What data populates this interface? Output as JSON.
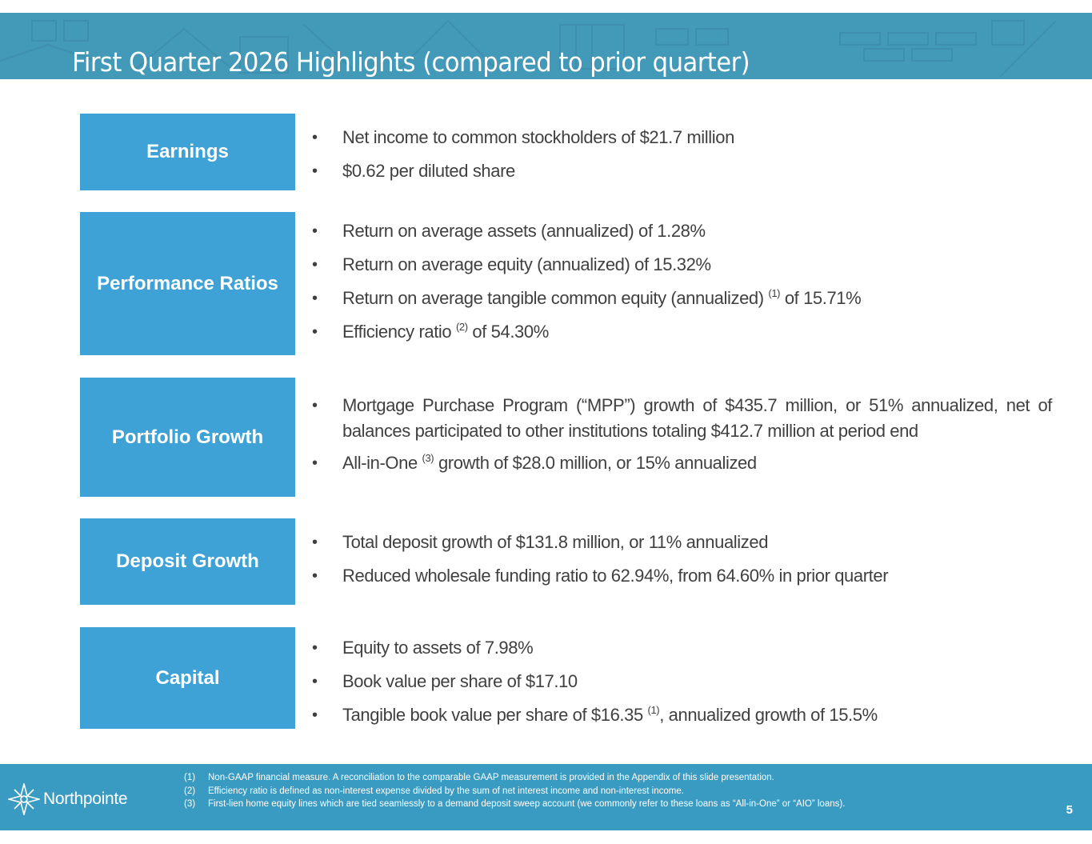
{
  "header": {
    "title": "First Quarter 2026 Highlights (compared to prior quarter)"
  },
  "colors": {
    "header_bg": "#4399b8",
    "section_box": "#3ea2d6",
    "footer_bg": "#3a9bc2",
    "body_text": "#404040"
  },
  "sections": [
    {
      "label": "Earnings",
      "bullets": [
        {
          "text": "Net income to common stockholders of $21.7 million",
          "sup": "",
          "after": ""
        },
        {
          "text": "$0.62 per diluted share",
          "sup": "",
          "after": ""
        }
      ]
    },
    {
      "label": "Performance Ratios",
      "bullets": [
        {
          "text": "Return on average assets (annualized) of 1.28%",
          "sup": "",
          "after": ""
        },
        {
          "text": "Return on average equity (annualized) of 15.32%",
          "sup": "",
          "after": ""
        },
        {
          "text": "Return on average tangible common equity (annualized) ",
          "sup": "(1)",
          "after": " of 15.71%"
        },
        {
          "text": "Efficiency ratio ",
          "sup": "(2)",
          "after": " of 54.30%"
        }
      ]
    },
    {
      "label": "Portfolio Growth",
      "bullets": [
        {
          "text": "Mortgage Purchase Program (“MPP”) growth of $435.7 million, or 51% annualized, net of balances participated to other institutions totaling $412.7 million at period end",
          "sup": "",
          "after": ""
        },
        {
          "text": "All-in-One ",
          "sup": "(3)",
          "after": " growth of $28.0 million, or 15% annualized"
        }
      ]
    },
    {
      "label": "Deposit Growth",
      "bullets": [
        {
          "text": "Total deposit growth of $131.8 million, or 11% annualized",
          "sup": "",
          "after": ""
        },
        {
          "text": "Reduced wholesale funding ratio to 62.94%, from 64.60% in prior quarter",
          "sup": "",
          "after": ""
        }
      ]
    },
    {
      "label": "Capital",
      "bullets": [
        {
          "text": "Equity to assets of 7.98%",
          "sup": "",
          "after": ""
        },
        {
          "text": "Book value per share of $17.10",
          "sup": "",
          "after": ""
        },
        {
          "text": "Tangible book value per share of $16.35 ",
          "sup": "(1)",
          "after": ", annualized growth of 15.5%"
        }
      ]
    }
  ],
  "bullet_glyph": "•",
  "footer": {
    "logo_text": "Northpointe",
    "logo_icon": "compass-star-icon",
    "footnotes": [
      {
        "num": "(1)",
        "text": "Non-GAAP financial measure. A reconciliation to the comparable GAAP measurement is provided in the Appendix of this slide presentation."
      },
      {
        "num": "(2)",
        "text": "Efficiency ratio is defined as non-interest expense divided by the sum of net interest income and non-interest income."
      },
      {
        "num": "(3)",
        "text": "First-lien home equity lines which are tied seamlessly to a demand deposit sweep account (we commonly refer to these loans as “All-in-One” or “AIO” loans)."
      }
    ],
    "page_number": "5"
  }
}
